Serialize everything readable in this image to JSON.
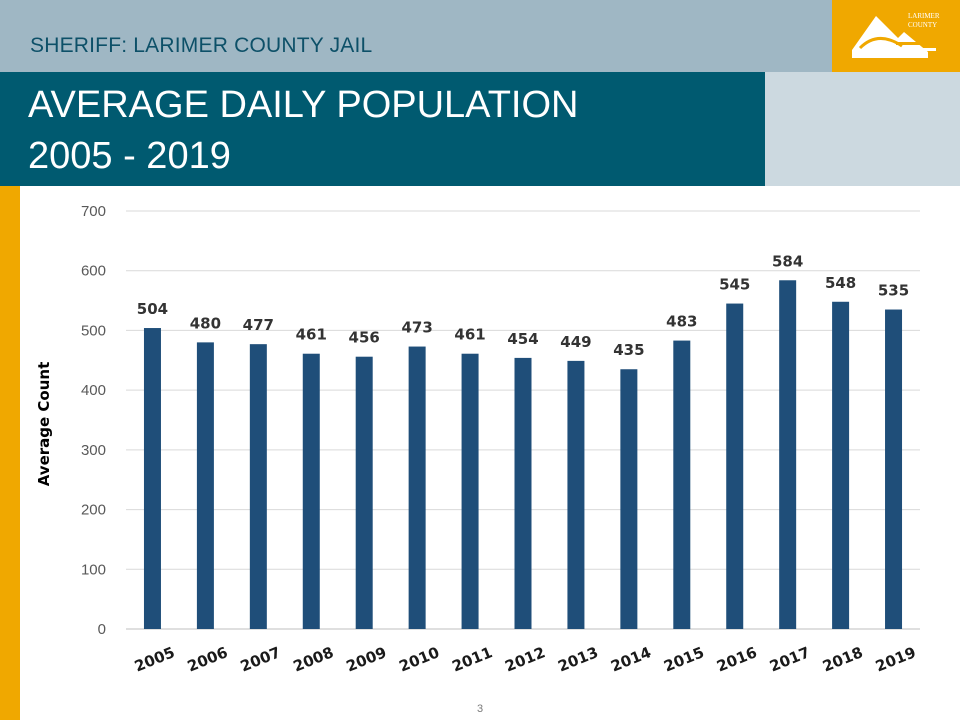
{
  "header": {
    "subtitle": "SHERIFF:  LARIMER COUNTY JAIL",
    "title_line1": "AVERAGE DAILY POPULATION",
    "title_line2": "2005 - 2019",
    "logo_line1": "LARIMER",
    "logo_line2": "COUNTY"
  },
  "colors": {
    "top_band": "#9fb7c4",
    "title_band": "#005a70",
    "accent": "#f0a800",
    "bar": "#1f4e79"
  },
  "page_number": "3",
  "chart_data": {
    "type": "bar",
    "categories": [
      "2005",
      "2006",
      "2007",
      "2008",
      "2009",
      "2010",
      "2011",
      "2012",
      "2013",
      "2014",
      "2015",
      "2016",
      "2017",
      "2018",
      "2019"
    ],
    "values": [
      504,
      480,
      477,
      461,
      456,
      473,
      461,
      454,
      449,
      435,
      483,
      545,
      584,
      548,
      535
    ],
    "title": "",
    "xlabel": "",
    "ylabel": "Average Count",
    "ylim": [
      0,
      700
    ],
    "yticks": [
      0,
      100,
      200,
      300,
      400,
      500,
      600,
      700
    ],
    "grid": true,
    "data_labels": true
  }
}
